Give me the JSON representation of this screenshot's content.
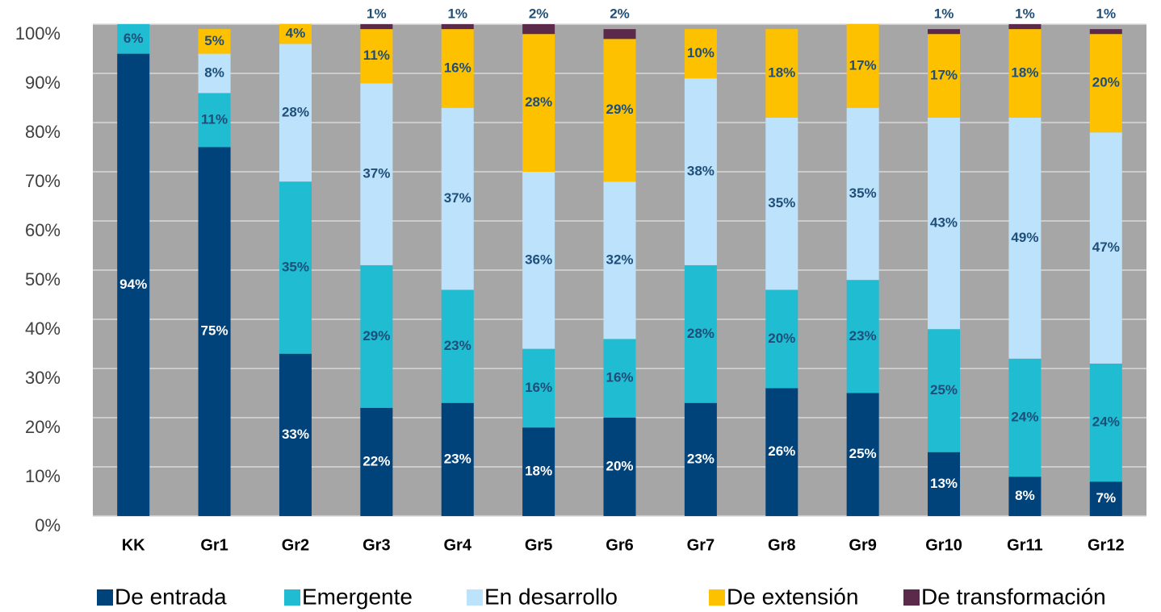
{
  "chart_data": {
    "type": "stacked_bar",
    "categories": [
      "KK",
      "Gr1",
      "Gr2",
      "Gr3",
      "Gr4",
      "Gr5",
      "Gr6",
      "Gr7",
      "Gr8",
      "Gr9",
      "Gr10",
      "Gr11",
      "Gr12"
    ],
    "series": [
      {
        "name": "De entrada",
        "color": "#00427a",
        "values": [
          94,
          75,
          33,
          22,
          23,
          18,
          20,
          23,
          26,
          25,
          13,
          8,
          7
        ],
        "value_labels": [
          "94%",
          "75%",
          "33%",
          "22%",
          "23%",
          "18%",
          "20%",
          "23%",
          "26%",
          "25%",
          "13%",
          "8%",
          "7%"
        ]
      },
      {
        "name": "Emergente",
        "color": "#1fbcd2",
        "values": [
          6,
          11,
          35,
          29,
          23,
          16,
          16,
          28,
          20,
          23,
          25,
          24,
          24
        ],
        "value_labels": [
          "6%",
          "11%",
          "35%",
          "29%",
          "23%",
          "16%",
          "16%",
          "28%",
          "20%",
          "23%",
          "25%",
          "24%",
          "24%"
        ]
      },
      {
        "name": "En desarrollo",
        "color": "#bde2fb",
        "values": [
          null,
          8,
          28,
          37,
          37,
          36,
          32,
          38,
          35,
          35,
          43,
          49,
          47
        ],
        "value_labels": [
          null,
          "8%",
          "28%",
          "37%",
          "37%",
          "36%",
          "32%",
          "38%",
          "35%",
          "35%",
          "43%",
          "49%",
          "47%"
        ]
      },
      {
        "name": "De extensión",
        "color": "#fdc100",
        "values": [
          null,
          5,
          4,
          11,
          16,
          28,
          29,
          10,
          18,
          17,
          17,
          18,
          20
        ],
        "value_labels": [
          null,
          "5%",
          "4%",
          "11%",
          "16%",
          "28%",
          "29%",
          "10%",
          "18%",
          "17%",
          "17%",
          "18%",
          "20%"
        ]
      },
      {
        "name": "De transformación",
        "color": "#5b2a4b",
        "values": [
          null,
          null,
          null,
          1,
          1,
          2,
          2,
          null,
          null,
          null,
          1,
          1,
          1
        ],
        "value_labels": [
          null,
          null,
          null,
          "1%",
          "1%",
          "2%",
          "2%",
          null,
          null,
          null,
          "1%",
          "1%",
          "1%"
        ]
      }
    ],
    "ylim": [
      0,
      100
    ],
    "yticks": [
      {
        "value": 0,
        "label": "0%"
      },
      {
        "value": 10,
        "label": "10%"
      },
      {
        "value": 20,
        "label": "20%"
      },
      {
        "value": 30,
        "label": "30%"
      },
      {
        "value": 40,
        "label": "40%"
      },
      {
        "value": 50,
        "label": "50%"
      },
      {
        "value": 60,
        "label": "60%"
      },
      {
        "value": 70,
        "label": "70%"
      },
      {
        "value": 80,
        "label": "80%"
      },
      {
        "value": 90,
        "label": "90%"
      },
      {
        "value": 100,
        "label": "100%"
      }
    ],
    "grid": true,
    "legend": "bottom"
  }
}
